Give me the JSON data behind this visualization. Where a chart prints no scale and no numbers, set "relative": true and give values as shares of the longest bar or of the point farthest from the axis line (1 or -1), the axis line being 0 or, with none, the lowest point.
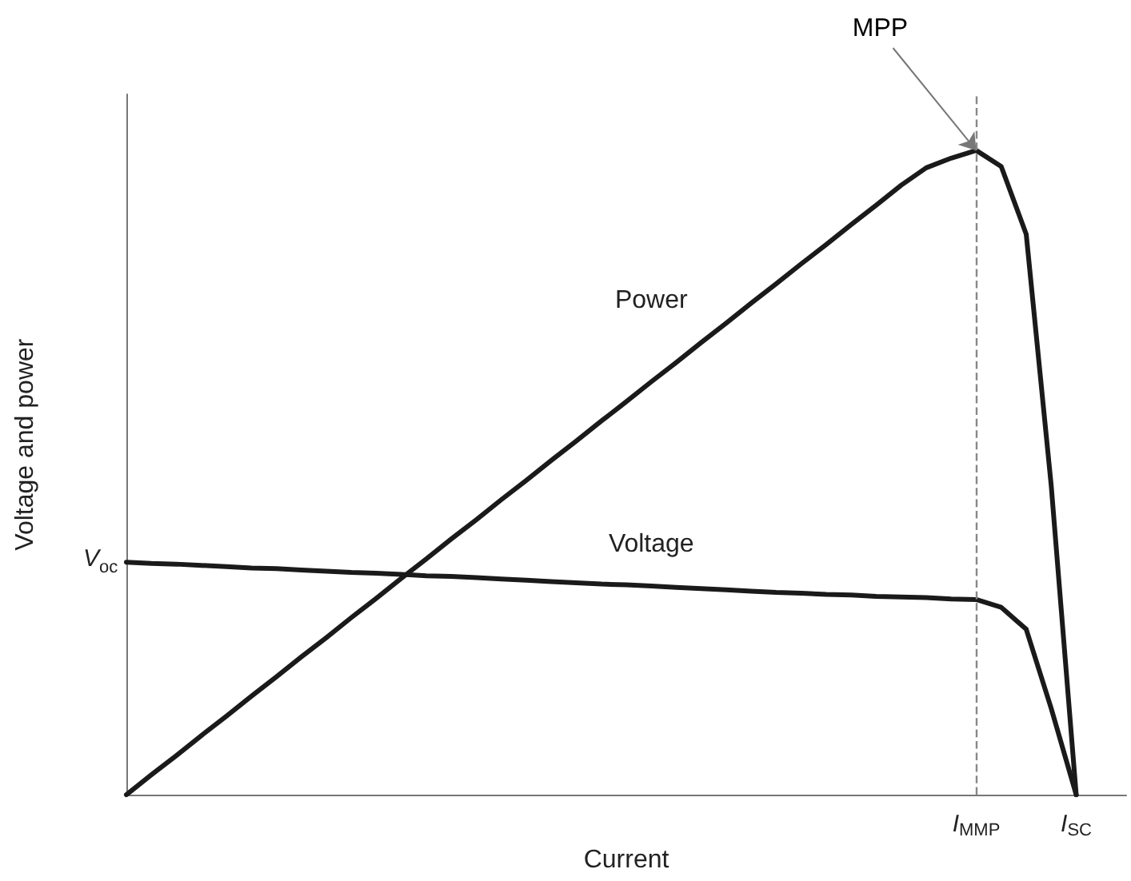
{
  "chart_data": {
    "type": "line",
    "relative": true,
    "xlabel": "Current",
    "ylabel": "Voltage and power",
    "categories": [
      null,
      null,
      null,
      null,
      null,
      null,
      null,
      null,
      null,
      null,
      null,
      null,
      null,
      null,
      null,
      null,
      null,
      null,
      null,
      null,
      null,
      null,
      null,
      null,
      null,
      null,
      null,
      null,
      null,
      null,
      null,
      null,
      null,
      null,
      "I$_{MMP}$",
      null,
      null,
      null,
      "I$_{SC}$",
      null,
      null
    ],
    "series": [
      {
        "name": "Power",
        "color": "#1a1a1a",
        "values": [
          0,
          0.031,
          0.061,
          0.092,
          0.122,
          0.153,
          0.183,
          0.214,
          0.244,
          0.275,
          0.305,
          0.336,
          0.366,
          0.397,
          0.427,
          0.458,
          0.488,
          0.519,
          0.549,
          0.58,
          0.61,
          0.641,
          0.671,
          0.702,
          0.732,
          0.763,
          0.793,
          0.824,
          0.854,
          0.885,
          0.915,
          0.946,
          0.973,
          0.988,
          1,
          0.975,
          0.87,
          0.48,
          0,
          null,
          null
        ]
      },
      {
        "name": "Voltage",
        "color": "#1a1a1a",
        "values": [
          0.361,
          0.359,
          0.358,
          0.356,
          0.354,
          0.352,
          0.351,
          0.349,
          0.347,
          0.345,
          0.344,
          0.342,
          0.34,
          0.339,
          0.337,
          0.335,
          0.333,
          0.331,
          0.329,
          0.327,
          0.326,
          0.324,
          0.322,
          0.32,
          0.318,
          0.316,
          0.314,
          0.313,
          0.311,
          0.31,
          0.308,
          0.307,
          0.306,
          0.304,
          0.303,
          0.291,
          0.257,
          0.134,
          0,
          null,
          null
        ]
      }
    ],
    "ref_lines": [
      {
        "axis": "x",
        "value": "I$_{MMP}$",
        "line_style": "dashed",
        "color": "#888888"
      }
    ],
    "annotations": [
      "V$_{oc}$",
      {
        "text": "MPP",
        "x": "I$_{MMP}$",
        "y": 1
      }
    ],
    "marker": "none",
    "line_style": "solid",
    "grid": false,
    "legend": false
  }
}
